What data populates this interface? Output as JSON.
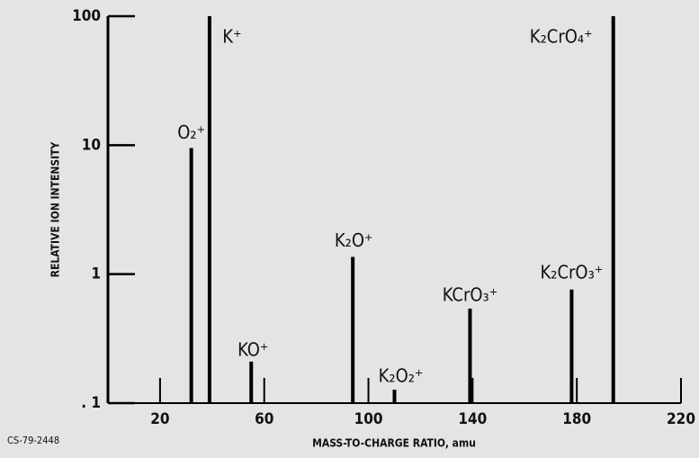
{
  "chart_data": {
    "type": "stem",
    "x_label": "MASS-TO-CHARGE RATIO, amu",
    "y_label": "RELATIVE ION INTENSITY",
    "code": "CS-79-2448",
    "x": [
      32,
      39,
      55,
      94,
      110,
      139,
      178,
      194
    ],
    "values": [
      9.5,
      100,
      0.21,
      1.36,
      0.127,
      0.54,
      0.76,
      100
    ],
    "peak_labels": [
      "O₂⁺",
      "K⁺",
      "KO⁺",
      "K₂O⁺",
      "K₂O₂⁺",
      "KCrO₃⁺",
      "K₂CrO₃⁺",
      "K₂CrO₄⁺"
    ],
    "color": "#000000",
    "log_y": true,
    "xlim": [
      0,
      220
    ],
    "xticks": [
      20,
      60,
      100,
      140,
      180,
      220
    ],
    "ylim": [
      0.1,
      100
    ],
    "yticks": [
      {
        "value": 0.1,
        "label": ". 1"
      },
      1,
      10,
      100
    ]
  }
}
